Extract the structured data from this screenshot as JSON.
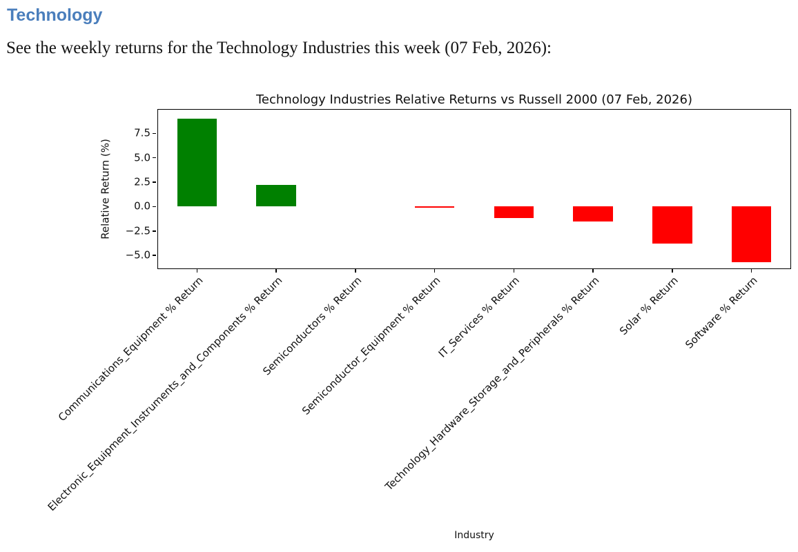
{
  "page": {
    "heading": "Technology",
    "heading_color": "#4a7ebc",
    "subtitle": "See the weekly returns for the Technology Industries this week (07 Feb, 2026):"
  },
  "chart_data": {
    "type": "bar",
    "title": "Technology Industries Relative Returns vs Russell 2000 (07 Feb, 2026)",
    "xlabel": "Industry",
    "ylabel": "Relative Return (%)",
    "categories": [
      "Communications_Equipment % Return",
      "Electronic_Equipment_Instruments_and_Components % Return",
      "Semiconductors % Return",
      "Semiconductor_Equipment % Return",
      "IT_Services % Return",
      "Technology_Hardware_Storage_and_Peripherals % Return",
      "Solar % Return",
      "Software % Return"
    ],
    "values": [
      9.0,
      2.2,
      0.0,
      -0.1,
      -1.2,
      -1.5,
      -3.8,
      -5.7
    ],
    "yticks": [
      7.5,
      5.0,
      2.5,
      0.0,
      -2.5,
      -5.0
    ],
    "ylim": [
      -6.4,
      10.0
    ],
    "bar_width_ratio": 0.5,
    "grid": false,
    "legend": "none",
    "colors": {
      "positive": "#008000",
      "negative": "#ff0000",
      "axis": "#000000"
    }
  }
}
